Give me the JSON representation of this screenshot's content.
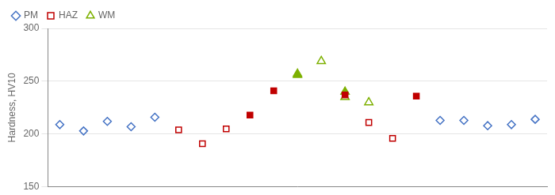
{
  "chart_data": {
    "type": "scatter",
    "ylabel": "Hardness, HV10",
    "xlim": [
      0.5,
      21.5
    ],
    "ylim": [
      150,
      300
    ],
    "yticks": [
      150,
      200,
      250,
      300
    ],
    "grid": "y",
    "tick_labels": "y",
    "legend": "upper left",
    "series": [
      {
        "name": "PM",
        "color": "#4472C4",
        "marker": "diamond_open",
        "x": [
          1,
          2,
          3,
          4,
          5,
          17,
          18,
          19,
          20,
          21
        ],
        "values": [
          209,
          203,
          212,
          207,
          216,
          213,
          213,
          208,
          209,
          214
        ]
      },
      {
        "name": "HAZ",
        "color": "#C00000",
        "marker": "square_open",
        "x": [
          6,
          7,
          8,
          14,
          15
        ],
        "values": [
          204,
          191,
          205,
          211,
          196
        ]
      },
      {
        "name": "HAZ",
        "color": "#C00000",
        "marker": "square",
        "x": [
          9,
          10,
          13,
          16
        ],
        "values": [
          218,
          241,
          237,
          236
        ]
      },
      {
        "name": "WM",
        "color": "#7DB000",
        "marker": "triangle_open",
        "x": [
          11,
          12,
          13,
          14
        ],
        "values": [
          257,
          269,
          235,
          230
        ]
      },
      {
        "name": "WM",
        "color": "#7DB000",
        "marker": "triangle",
        "x": [
          11,
          13
        ],
        "values": [
          256,
          240
        ]
      }
    ]
  }
}
